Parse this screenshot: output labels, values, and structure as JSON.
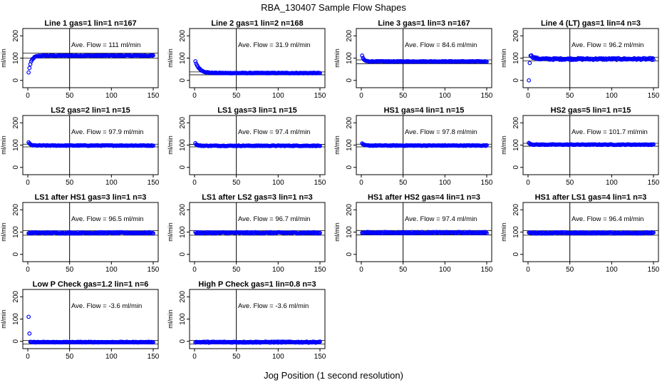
{
  "chart_data": {
    "type": "scatter",
    "title": "RBA_130407  Sample Flow Shapes",
    "xlabel": "Jog Position (1 second resolution)",
    "ylabel": "ml/min",
    "xlim": [
      0,
      150
    ],
    "ylim": [
      -20,
      220
    ],
    "xticks": [
      0,
      50,
      100,
      150
    ],
    "yticks": [
      0,
      100,
      200
    ],
    "vline_x": 50,
    "point_color": "#0000ff",
    "layout": "4x4 grid of small multiples (14 panels)",
    "panels": [
      {
        "title": "Line 1 gas=1 lin=1 n=167",
        "annotation": "Ave. Flow = 111  ml/min",
        "ave_flow": 111,
        "band": [
          100,
          122
        ],
        "shape": {
          "start": 35,
          "level": 111,
          "tau": 3,
          "noise": 2
        }
      },
      {
        "title": "Line 2 gas=1 lin=2 n=168",
        "annotation": "Ave. Flow = 31.9  ml/min",
        "ave_flow": 31.9,
        "band": [
          25,
          38
        ],
        "shape": {
          "start": 85,
          "level": 33,
          "tau": 5,
          "noise": 1.5
        }
      },
      {
        "title": "Line 3 gas=1 lin=3 n=167",
        "annotation": "Ave. Flow = 84.6  ml/min",
        "ave_flow": 84.6,
        "band": [
          75,
          92
        ],
        "shape": {
          "start": 110,
          "level": 85,
          "tau": 2,
          "noise": 1.5
        }
      },
      {
        "title": "Line 4 (LT) gas=1 lin=4 n=3",
        "annotation": "Ave. Flow = 96.2  ml/min",
        "ave_flow": 96.2,
        "band": [
          88,
          104
        ],
        "shape": {
          "start": 125,
          "level": 96,
          "tau": 4,
          "noise": 4,
          "outliers": [
            [
              1,
              0
            ],
            [
              2,
              78
            ]
          ]
        }
      },
      {
        "title": "LS2 gas=2 lin=1 n=15",
        "annotation": "Ave. Flow = 97.9  ml/min",
        "ave_flow": 97.9,
        "band": [
          92,
          104
        ],
        "shape": {
          "start": 112,
          "level": 98,
          "tau": 2,
          "noise": 1.5
        }
      },
      {
        "title": "LS1 gas=3 lin=1 n=15",
        "annotation": "Ave. Flow = 97.4  ml/min",
        "ave_flow": 97.4,
        "band": [
          92,
          103
        ],
        "shape": {
          "start": 108,
          "level": 97,
          "tau": 2,
          "noise": 1.5
        }
      },
      {
        "title": "HS1 gas=4 lin=1 n=15",
        "annotation": "Ave. Flow = 97.8  ml/min",
        "ave_flow": 97.8,
        "band": [
          92,
          104
        ],
        "shape": {
          "start": 106,
          "level": 98,
          "tau": 2,
          "noise": 1.5
        }
      },
      {
        "title": "HS2 gas=5 lin=1 n=15",
        "annotation": "Ave. Flow = 101.7  ml/min",
        "ave_flow": 101.7,
        "band": [
          95,
          108
        ],
        "shape": {
          "start": 110,
          "level": 102,
          "tau": 2,
          "noise": 1.5
        }
      },
      {
        "title": "LS1 after HS1 gas=3 lin=1 n=3",
        "annotation": "Ave. Flow = 96.5  ml/min",
        "ave_flow": 96.5,
        "band": [
          86,
          106
        ],
        "shape": {
          "start": 96,
          "level": 96.5,
          "tau": 1,
          "noise": 3
        }
      },
      {
        "title": "LS1 after LS2 gas=3 lin=1 n=3",
        "annotation": "Ave. Flow = 96.7  ml/min",
        "ave_flow": 96.7,
        "band": [
          86,
          106
        ],
        "shape": {
          "start": 97,
          "level": 96.7,
          "tau": 1,
          "noise": 3
        }
      },
      {
        "title": "HS1 after HS2 gas=4 lin=1 n=3",
        "annotation": "Ave. Flow = 97.4  ml/min",
        "ave_flow": 97.4,
        "band": [
          87,
          107
        ],
        "shape": {
          "start": 98,
          "level": 97.4,
          "tau": 1,
          "noise": 3
        }
      },
      {
        "title": "HS1 after LS1 gas=4 lin=1 n=3",
        "annotation": "Ave. Flow = 96.4  ml/min",
        "ave_flow": 96.4,
        "band": [
          86,
          106
        ],
        "shape": {
          "start": 97,
          "level": 96.4,
          "tau": 1,
          "noise": 3
        }
      },
      {
        "title": "Low P Check gas=1.2 lin=1 n=6",
        "annotation": "Ave. Flow = -3.6  ml/min",
        "ave_flow": -3.6,
        "band": [
          -12,
          4
        ],
        "shape": {
          "start": -3,
          "level": -3.6,
          "tau": 1,
          "noise": 1.5,
          "outliers": [
            [
              1,
              110
            ],
            [
              2,
              35
            ]
          ]
        }
      },
      {
        "title": "High P Check gas=1 lin=0.8 n=3",
        "annotation": "Ave. Flow = -3.6  ml/min",
        "ave_flow": -3.6,
        "band": [
          -12,
          4
        ],
        "shape": {
          "start": -3,
          "level": -3.6,
          "tau": 1,
          "noise": 2.5
        }
      }
    ]
  }
}
